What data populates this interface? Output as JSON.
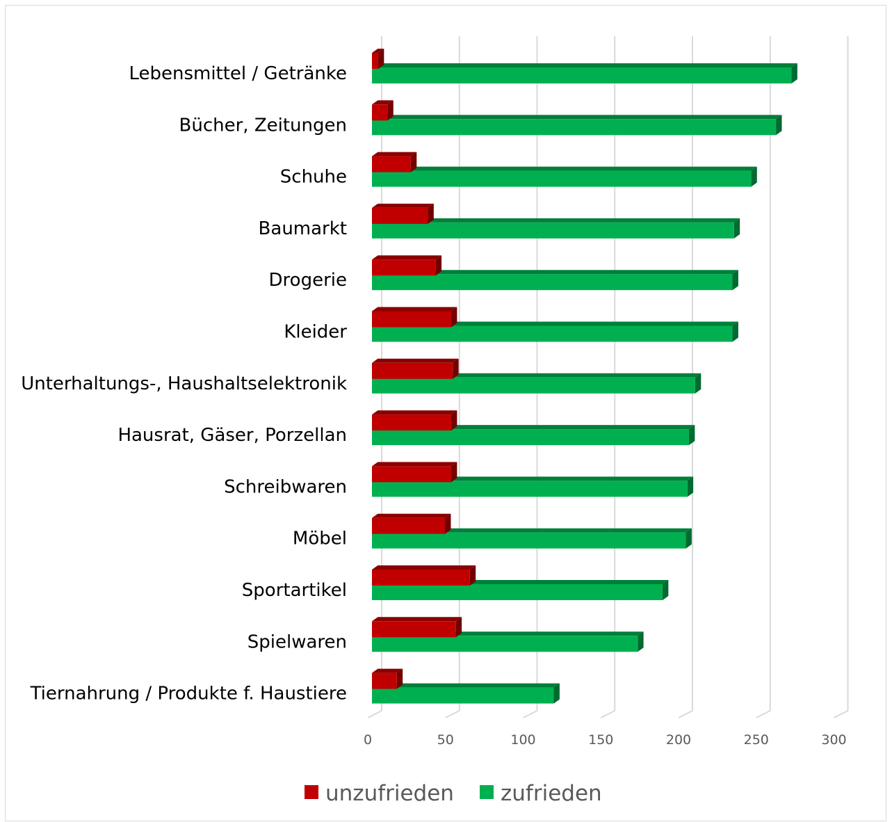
{
  "chart_data": {
    "type": "bar",
    "orientation": "horizontal",
    "style": "3d-clustered",
    "categories": [
      "Lebensmittel / Getränke",
      "Bücher, Zeitungen",
      "Schuhe",
      "Baumarkt",
      "Drogerie",
      "Kleider",
      "Unterhaltungs-, Haushaltselektronik",
      "Hausrat, Gäser, Porzellan",
      "Schreibwaren",
      "Möbel",
      "Sportartikel",
      "Spielwaren",
      "Tiernahrung / Produkte f. Haustiere"
    ],
    "series": [
      {
        "name": "unzufrieden",
        "color": "#c00000",
        "values": [
          4,
          10,
          25,
          36,
          41,
          51,
          52,
          51,
          51,
          47,
          63,
          54,
          16
        ]
      },
      {
        "name": "zufrieden",
        "color": "#00b050",
        "values": [
          270,
          260,
          244,
          233,
          232,
          232,
          208,
          204,
          203,
          202,
          187,
          171,
          117
        ]
      }
    ],
    "xlim": [
      0,
      300
    ],
    "xticks": [
      0,
      50,
      100,
      150,
      200,
      250,
      300
    ],
    "grid": true,
    "legend": "bottom-center",
    "title": "",
    "xlabel": "",
    "ylabel": ""
  }
}
